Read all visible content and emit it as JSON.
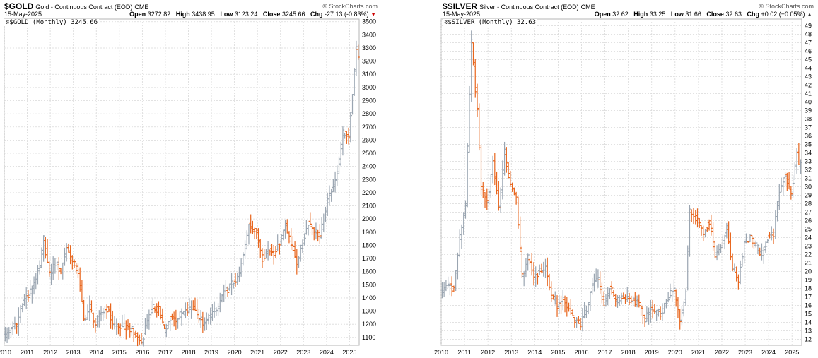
{
  "panels": [
    {
      "symbol": "$GOLD",
      "description": "Gold - Continuous Contract (EOD)",
      "exchange": "CME",
      "brand": "© StockCharts.com",
      "date": "15-May-2025",
      "ohlc": {
        "open_label": "Open",
        "open": "3272.82",
        "high_label": "High",
        "high": "3438.95",
        "low_label": "Low",
        "low": "3123.24",
        "close_label": "Close",
        "close": "3245.66",
        "chg_label": "Chg",
        "chg": "-27.13 (-0.83%)"
      },
      "legend": "$GOLD (Monthly) 3245.66"
    },
    {
      "symbol": "$SILVER",
      "description": "Silver - Continuous Contract (EOD)",
      "exchange": "CME",
      "brand": "© StockCharts.com",
      "date": "15-May-2025",
      "ohlc": {
        "open_label": "Open",
        "open": "32.62",
        "high_label": "High",
        "high": "33.25",
        "low_label": "Low",
        "low": "31.66",
        "close_label": "Close",
        "close": "32.63",
        "chg_label": "Chg",
        "chg": "+0.02 (+0.05%)"
      },
      "legend": "$SILVER (Monthly) 32.63"
    }
  ],
  "chart_data": [
    {
      "type": "ohlc",
      "title": "$GOLD Gold - Continuous Contract (EOD) CME",
      "interval": "Monthly",
      "x_ticks": [
        "2010",
        "2011",
        "2012",
        "2013",
        "2014",
        "2015",
        "2016",
        "2017",
        "2018",
        "2019",
        "2020",
        "2021",
        "2022",
        "2023",
        "2024",
        "2025"
      ],
      "y_ticks": [
        1100,
        1200,
        1300,
        1400,
        1500,
        1600,
        1700,
        1800,
        1900,
        2000,
        2100,
        2200,
        2300,
        2400,
        2500,
        2600,
        2700,
        2800,
        2900,
        3000,
        3100,
        3200,
        3300,
        3400,
        3500
      ],
      "ylim": [
        1040,
        3520
      ],
      "grid": true,
      "colors": {
        "up": "#9aa5b1",
        "down": "#e8651c",
        "grid": "#d9d9d9"
      },
      "close_by_quarter": [
        {
          "x": "2010-01",
          "close": 1110
        },
        {
          "x": "2010-04",
          "close": 1180
        },
        {
          "x": "2010-07",
          "close": 1200
        },
        {
          "x": "2010-10",
          "close": 1380
        },
        {
          "x": "2011-01",
          "close": 1410
        },
        {
          "x": "2011-04",
          "close": 1520
        },
        {
          "x": "2011-07",
          "close": 1630
        },
        {
          "x": "2011-09",
          "close": 1850
        },
        {
          "x": "2011-12",
          "close": 1570
        },
        {
          "x": "2012-03",
          "close": 1670
        },
        {
          "x": "2012-06",
          "close": 1600
        },
        {
          "x": "2012-09",
          "close": 1780
        },
        {
          "x": "2012-12",
          "close": 1670
        },
        {
          "x": "2013-03",
          "close": 1600
        },
        {
          "x": "2013-06",
          "close": 1230
        },
        {
          "x": "2013-09",
          "close": 1330
        },
        {
          "x": "2013-12",
          "close": 1200
        },
        {
          "x": "2014-03",
          "close": 1290
        },
        {
          "x": "2014-06",
          "close": 1320
        },
        {
          "x": "2014-09",
          "close": 1210
        },
        {
          "x": "2014-12",
          "close": 1185
        },
        {
          "x": "2015-03",
          "close": 1180
        },
        {
          "x": "2015-06",
          "close": 1170
        },
        {
          "x": "2015-09",
          "close": 1115
        },
        {
          "x": "2015-12",
          "close": 1060
        },
        {
          "x": "2016-03",
          "close": 1235
        },
        {
          "x": "2016-06",
          "close": 1320
        },
        {
          "x": "2016-09",
          "close": 1315
        },
        {
          "x": "2016-12",
          "close": 1150
        },
        {
          "x": "2017-03",
          "close": 1250
        },
        {
          "x": "2017-06",
          "close": 1240
        },
        {
          "x": "2017-09",
          "close": 1280
        },
        {
          "x": "2017-12",
          "close": 1300
        },
        {
          "x": "2018-03",
          "close": 1325
        },
        {
          "x": "2018-06",
          "close": 1250
        },
        {
          "x": "2018-09",
          "close": 1190
        },
        {
          "x": "2018-12",
          "close": 1280
        },
        {
          "x": "2019-03",
          "close": 1295
        },
        {
          "x": "2019-06",
          "close": 1410
        },
        {
          "x": "2019-09",
          "close": 1470
        },
        {
          "x": "2019-12",
          "close": 1520
        },
        {
          "x": "2020-03",
          "close": 1580
        },
        {
          "x": "2020-06",
          "close": 1790
        },
        {
          "x": "2020-08",
          "close": 1970
        },
        {
          "x": "2020-12",
          "close": 1890
        },
        {
          "x": "2021-03",
          "close": 1710
        },
        {
          "x": "2021-06",
          "close": 1770
        },
        {
          "x": "2021-09",
          "close": 1750
        },
        {
          "x": "2021-12",
          "close": 1830
        },
        {
          "x": "2022-03",
          "close": 1950
        },
        {
          "x": "2022-06",
          "close": 1810
        },
        {
          "x": "2022-09",
          "close": 1670
        },
        {
          "x": "2022-12",
          "close": 1820
        },
        {
          "x": "2023-03",
          "close": 1980
        },
        {
          "x": "2023-06",
          "close": 1920
        },
        {
          "x": "2023-09",
          "close": 1870
        },
        {
          "x": "2023-12",
          "close": 2070
        },
        {
          "x": "2024-03",
          "close": 2230
        },
        {
          "x": "2024-06",
          "close": 2340
        },
        {
          "x": "2024-09",
          "close": 2650
        },
        {
          "x": "2024-12",
          "close": 2640
        },
        {
          "x": "2025-03",
          "close": 3120
        },
        {
          "x": "2025-04",
          "close": 3300
        },
        {
          "x": "2025-05",
          "close": 3245.66
        }
      ]
    },
    {
      "type": "ohlc",
      "title": "$SILVER Silver - Continuous Contract (EOD) CME",
      "interval": "Monthly",
      "x_ticks": [
        "2010",
        "2011",
        "2012",
        "2013",
        "2014",
        "2015",
        "2016",
        "2017",
        "2018",
        "2019",
        "2020",
        "2021",
        "2022",
        "2023",
        "2024",
        "2025"
      ],
      "y_ticks": [
        12,
        13,
        14,
        15,
        16,
        17,
        18,
        19,
        20,
        21,
        22,
        23,
        24,
        25,
        26,
        27,
        28,
        29,
        30,
        31,
        32,
        33,
        34,
        35,
        36,
        37,
        38,
        39,
        40,
        41,
        42,
        43,
        44,
        45,
        46,
        47,
        48,
        49
      ],
      "ylim": [
        11.3,
        49.8
      ],
      "grid": true,
      "colors": {
        "up": "#9aa5b1",
        "down": "#e8651c",
        "grid": "#d9d9d9"
      },
      "close_by_quarter": [
        {
          "x": "2010-01",
          "close": 17.5
        },
        {
          "x": "2010-04",
          "close": 18.5
        },
        {
          "x": "2010-07",
          "close": 18.0
        },
        {
          "x": "2010-10",
          "close": 24.0
        },
        {
          "x": "2011-01",
          "close": 28.0
        },
        {
          "x": "2011-04",
          "close": 47.0
        },
        {
          "x": "2011-07",
          "close": 39.0
        },
        {
          "x": "2011-09",
          "close": 30.0
        },
        {
          "x": "2011-12",
          "close": 28.0
        },
        {
          "x": "2012-03",
          "close": 33.0
        },
        {
          "x": "2012-06",
          "close": 27.5
        },
        {
          "x": "2012-09",
          "close": 34.0
        },
        {
          "x": "2012-12",
          "close": 30.0
        },
        {
          "x": "2013-03",
          "close": 28.5
        },
        {
          "x": "2013-06",
          "close": 19.5
        },
        {
          "x": "2013-09",
          "close": 21.5
        },
        {
          "x": "2013-12",
          "close": 19.5
        },
        {
          "x": "2014-03",
          "close": 20.0
        },
        {
          "x": "2014-06",
          "close": 20.5
        },
        {
          "x": "2014-09",
          "close": 17.0
        },
        {
          "x": "2014-12",
          "close": 16.0
        },
        {
          "x": "2015-03",
          "close": 16.5
        },
        {
          "x": "2015-06",
          "close": 15.5
        },
        {
          "x": "2015-09",
          "close": 14.5
        },
        {
          "x": "2015-12",
          "close": 13.8
        },
        {
          "x": "2016-03",
          "close": 15.5
        },
        {
          "x": "2016-06",
          "close": 18.5
        },
        {
          "x": "2016-09",
          "close": 19.2
        },
        {
          "x": "2016-12",
          "close": 16.0
        },
        {
          "x": "2017-03",
          "close": 18.2
        },
        {
          "x": "2017-06",
          "close": 16.5
        },
        {
          "x": "2017-09",
          "close": 16.8
        },
        {
          "x": "2017-12",
          "close": 17.0
        },
        {
          "x": "2018-03",
          "close": 16.5
        },
        {
          "x": "2018-06",
          "close": 16.2
        },
        {
          "x": "2018-09",
          "close": 14.3
        },
        {
          "x": "2018-12",
          "close": 15.5
        },
        {
          "x": "2019-03",
          "close": 15.0
        },
        {
          "x": "2019-06",
          "close": 15.3
        },
        {
          "x": "2019-09",
          "close": 17.0
        },
        {
          "x": "2019-12",
          "close": 17.8
        },
        {
          "x": "2020-03",
          "close": 14.0
        },
        {
          "x": "2020-06",
          "close": 18.0
        },
        {
          "x": "2020-08",
          "close": 27.0
        },
        {
          "x": "2020-12",
          "close": 26.3
        },
        {
          "x": "2021-03",
          "close": 24.5
        },
        {
          "x": "2021-06",
          "close": 26.0
        },
        {
          "x": "2021-09",
          "close": 22.0
        },
        {
          "x": "2021-12",
          "close": 23.0
        },
        {
          "x": "2022-03",
          "close": 25.0
        },
        {
          "x": "2022-06",
          "close": 20.5
        },
        {
          "x": "2022-09",
          "close": 19.0
        },
        {
          "x": "2022-12",
          "close": 23.5
        },
        {
          "x": "2023-03",
          "close": 24.0
        },
        {
          "x": "2023-06",
          "close": 23.0
        },
        {
          "x": "2023-09",
          "close": 22.0
        },
        {
          "x": "2023-12",
          "close": 24.0
        },
        {
          "x": "2024-03",
          "close": 24.5
        },
        {
          "x": "2024-06",
          "close": 29.5
        },
        {
          "x": "2024-09",
          "close": 31.5
        },
        {
          "x": "2024-12",
          "close": 29.0
        },
        {
          "x": "2025-03",
          "close": 34.0
        },
        {
          "x": "2025-04",
          "close": 32.5
        },
        {
          "x": "2025-05",
          "close": 32.63
        }
      ]
    }
  ]
}
